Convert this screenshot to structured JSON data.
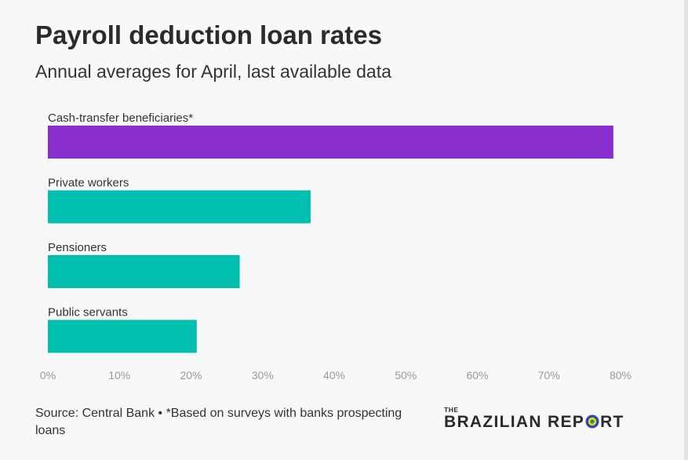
{
  "title": "Payroll deduction loan rates",
  "subtitle": "Annual averages for April, last available data",
  "chart_data": {
    "type": "bar",
    "orientation": "horizontal",
    "categories": [
      "Cash-transfer beneficiaries*",
      "Private workers",
      "Pensioners",
      "Public servants"
    ],
    "values": [
      79,
      36.7,
      26.8,
      20.8
    ],
    "bar_colors": [
      "#8a2fcf",
      "#00bfae",
      "#00bfae",
      "#00bfae"
    ],
    "xlim": [
      0,
      80
    ],
    "x_ticks": [
      0,
      10,
      20,
      30,
      40,
      50,
      60,
      70,
      80
    ],
    "x_tick_labels": [
      "0%",
      "10%",
      "20%",
      "30%",
      "40%",
      "50%",
      "60%",
      "70%",
      "80%"
    ],
    "xlabel": "",
    "ylabel": "",
    "grid": false,
    "legend": "none"
  },
  "footer": {
    "source": "Source: Central Bank • *Based on surveys with banks prospecting loans"
  },
  "logo": {
    "the": "THE",
    "brazilian": "BRAZILIAN",
    "rep": "REP",
    "rt": "RT",
    "o_colors": [
      "#2a4bb5",
      "#f7d21a",
      "#1d9a5a"
    ]
  }
}
